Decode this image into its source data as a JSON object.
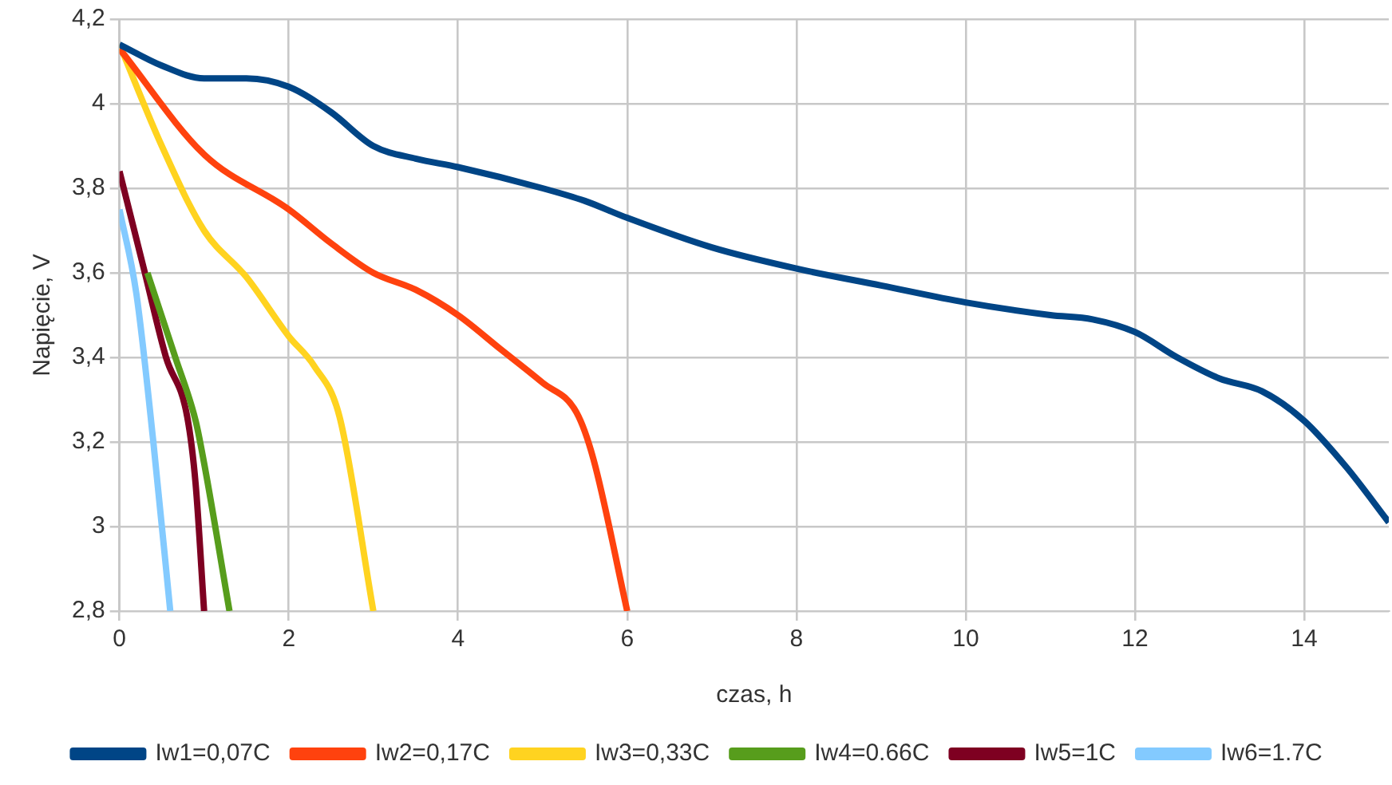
{
  "chart_data": {
    "type": "line",
    "xlabel": "czas, h",
    "ylabel": "Napięcie, V",
    "xlim": [
      0,
      15
    ],
    "xticks": [
      0,
      2,
      4,
      6,
      8,
      10,
      12,
      14
    ],
    "ylim": [
      2.8,
      4.2
    ],
    "yticks": [
      {
        "value": 2.8,
        "label": "2,8"
      },
      {
        "value": 3,
        "label": "3"
      },
      {
        "value": 3.2,
        "label": "3,2"
      },
      {
        "value": 3.4,
        "label": "3,4"
      },
      {
        "value": 3.6,
        "label": "3,6"
      },
      {
        "value": 3.8,
        "label": "3,8"
      },
      {
        "value": 4,
        "label": "4"
      },
      {
        "value": 4.2,
        "label": "4,2"
      }
    ],
    "grid": true,
    "legend": "bottom",
    "marker": "none",
    "line_style": "solid",
    "series": [
      {
        "name": "Iw1=0,07C",
        "color": "#004586",
        "x": [
          0,
          0.5,
          1,
          1.5,
          2,
          2.5,
          3,
          3.5,
          4,
          5,
          5.5,
          6,
          7,
          8,
          9,
          10,
          11,
          11.5,
          12,
          12.5,
          13,
          13.5,
          14,
          14.5,
          15
        ],
        "values": [
          4.14,
          4.09,
          4.06,
          4.06,
          4.04,
          3.98,
          3.9,
          3.87,
          3.85,
          3.8,
          3.77,
          3.73,
          3.66,
          3.61,
          3.57,
          3.53,
          3.5,
          3.49,
          3.46,
          3.4,
          3.35,
          3.32,
          3.25,
          3.14,
          3.01
        ]
      },
      {
        "name": "Iw2=0,17C",
        "color": "#ff420e",
        "x": [
          0,
          1,
          2,
          2.5,
          3,
          3.5,
          4,
          4.5,
          5,
          5.4,
          5.6,
          6
        ],
        "values": [
          4.13,
          3.88,
          3.75,
          3.67,
          3.6,
          3.56,
          3.5,
          3.42,
          3.34,
          3.27,
          3.16,
          2.8
        ]
      },
      {
        "name": "Iw3=0,33C",
        "color": "#ffd320",
        "x": [
          0,
          0.5,
          1,
          1.5,
          2,
          2.3,
          2.6,
          3
        ],
        "values": [
          4.14,
          3.9,
          3.7,
          3.59,
          3.45,
          3.38,
          3.26,
          2.8
        ]
      },
      {
        "name": "Iw4=0.66C",
        "color": "#579d1c",
        "x": [
          0.33,
          0.66,
          0.9,
          1.0,
          1.3
        ],
        "values": [
          3.6,
          3.4,
          3.25,
          3.15,
          2.8
        ]
      },
      {
        "name": "Iw5=1C",
        "color": "#7e0021",
        "x": [
          0,
          0.3,
          0.55,
          0.8,
          0.9,
          1.0
        ],
        "values": [
          3.84,
          3.6,
          3.4,
          3.26,
          3.1,
          2.8
        ]
      },
      {
        "name": "Iw6=1.7C",
        "color": "#83caff",
        "x": [
          0,
          0.2,
          0.4,
          0.6
        ],
        "values": [
          3.75,
          3.55,
          3.2,
          2.8
        ]
      }
    ]
  }
}
